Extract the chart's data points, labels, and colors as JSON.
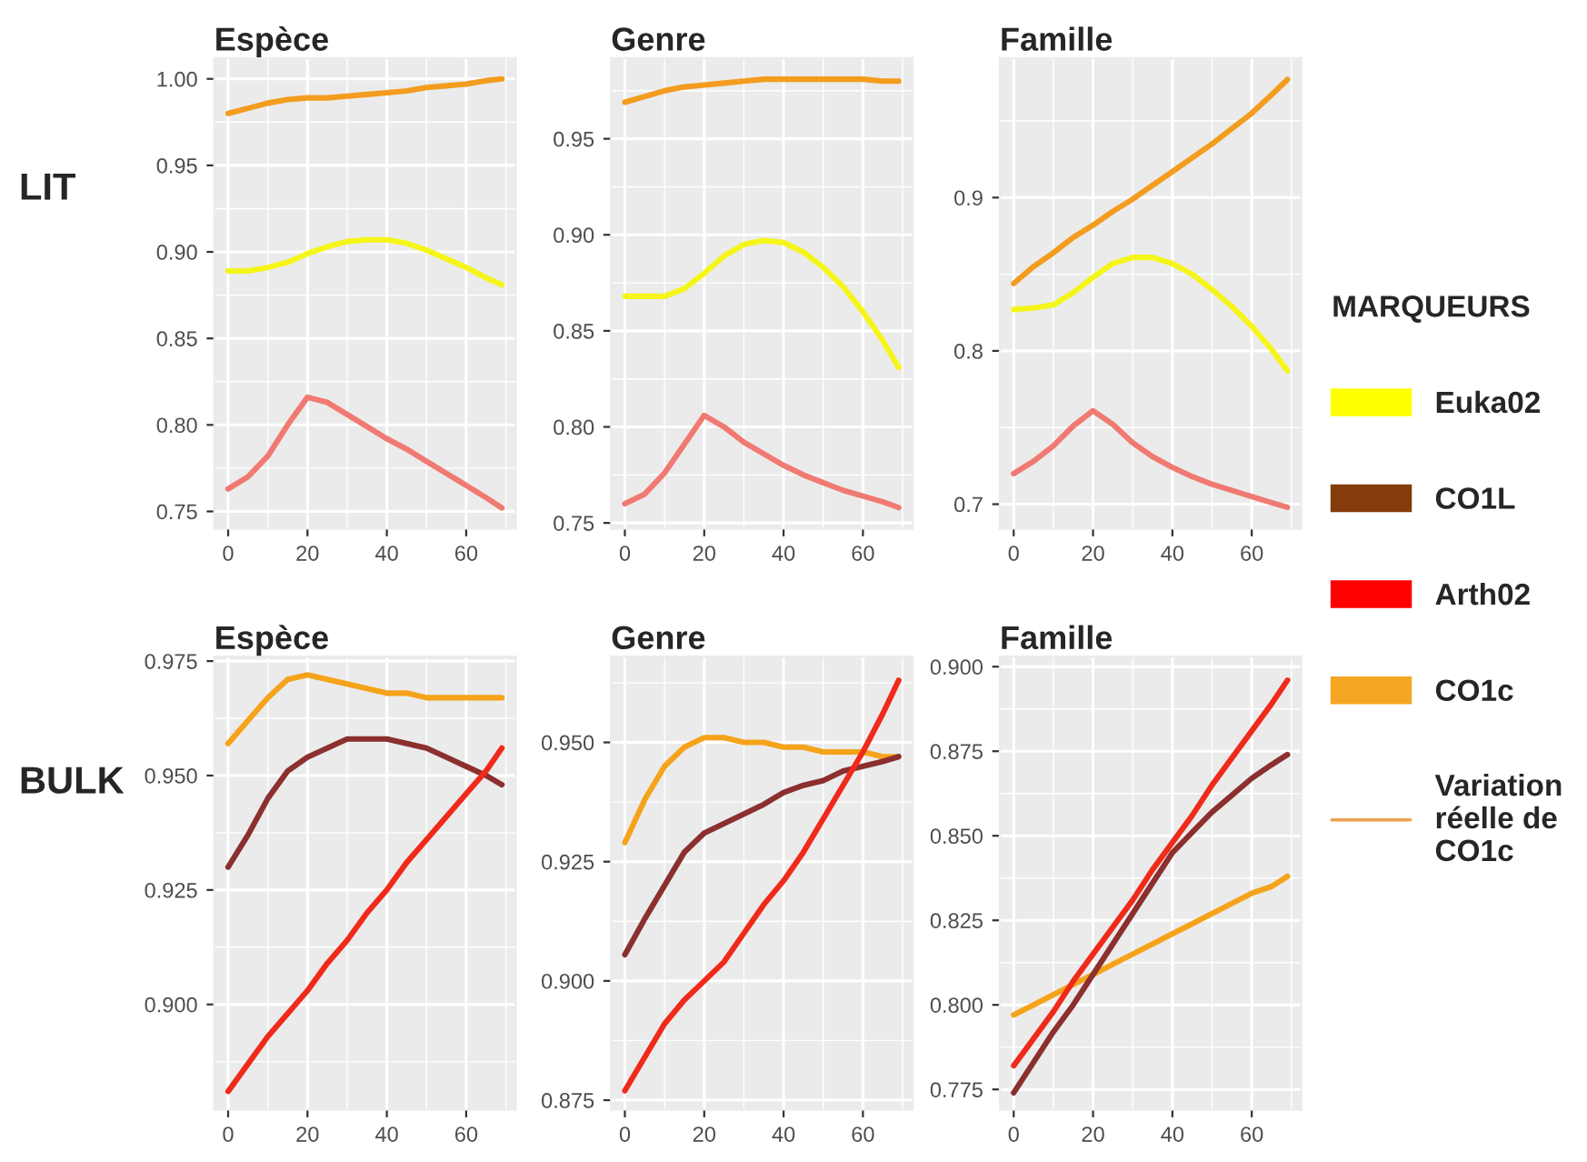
{
  "chart_data": [
    {
      "type": "line",
      "title": "Espèce",
      "x": [
        0,
        5,
        10,
        15,
        20,
        25,
        30,
        35,
        40,
        45,
        50,
        55,
        60,
        65,
        69
      ],
      "xlim": [
        -3.5,
        72.5
      ],
      "xticks": [
        0,
        20,
        40,
        60
      ],
      "ylim": [
        0.74,
        1.012
      ],
      "yticks": [
        0.75,
        {
          "value": 0.8,
          "label": "0.80"
        },
        0.85,
        {
          "value": 0.9,
          "label": "0.90"
        },
        0.95,
        {
          "value": 1.0,
          "label": "1.00"
        }
      ],
      "grid": true,
      "series": [
        {
          "color": "#f39c1e",
          "values": [
            0.98,
            0.983,
            0.986,
            0.988,
            0.989,
            0.989,
            0.99,
            0.991,
            0.992,
            0.993,
            0.995,
            0.996,
            0.997,
            0.999,
            1.0
          ]
        },
        {
          "color": "#f5f51a",
          "values": [
            0.889,
            0.889,
            0.891,
            0.894,
            0.899,
            0.903,
            0.906,
            0.907,
            0.907,
            0.905,
            0.901,
            0.896,
            0.891,
            0.885,
            0.881
          ]
        },
        {
          "color": "#f07a72",
          "values": [
            0.763,
            0.77,
            0.782,
            0.8,
            0.816,
            0.813,
            0.806,
            0.799,
            0.792,
            0.786,
            0.779,
            0.772,
            0.765,
            0.758,
            0.752
          ]
        }
      ]
    },
    {
      "type": "line",
      "title": "Genre",
      "x": [
        0,
        5,
        10,
        15,
        20,
        25,
        30,
        35,
        40,
        45,
        50,
        55,
        60,
        65,
        69
      ],
      "xlim": [
        -3.5,
        72.5
      ],
      "xticks": [
        0,
        20,
        40,
        60
      ],
      "ylim": [
        0.747,
        0.992
      ],
      "yticks": [
        0.75,
        {
          "value": 0.8,
          "label": "0.80"
        },
        0.85,
        {
          "value": 0.9,
          "label": "0.90"
        },
        0.95
      ],
      "grid": true,
      "series": [
        {
          "color": "#f39c1e",
          "values": [
            0.969,
            0.972,
            0.975,
            0.977,
            0.978,
            0.979,
            0.98,
            0.981,
            0.981,
            0.981,
            0.981,
            0.981,
            0.981,
            0.98,
            0.98
          ]
        },
        {
          "color": "#f5f51a",
          "values": [
            0.868,
            0.868,
            0.868,
            0.872,
            0.88,
            0.889,
            0.895,
            0.897,
            0.896,
            0.891,
            0.883,
            0.873,
            0.86,
            0.845,
            0.831
          ]
        },
        {
          "color": "#f07a72",
          "values": [
            0.76,
            0.765,
            0.776,
            0.791,
            0.806,
            0.8,
            0.792,
            0.786,
            0.78,
            0.775,
            0.771,
            0.767,
            0.764,
            0.761,
            0.758
          ]
        }
      ]
    },
    {
      "type": "line",
      "title": "Famille",
      "x": [
        0,
        5,
        10,
        15,
        20,
        25,
        30,
        35,
        40,
        45,
        50,
        55,
        60,
        65,
        69
      ],
      "xlim": [
        -3.5,
        72.5
      ],
      "xticks": [
        0,
        20,
        40,
        60
      ],
      "ylim": [
        0.684,
        0.991
      ],
      "yticks": [
        0.7,
        0.8,
        0.9
      ],
      "grid": true,
      "series": [
        {
          "color": "#f39c1e",
          "values": [
            0.844,
            0.855,
            0.864,
            0.874,
            0.882,
            0.891,
            0.899,
            0.908,
            0.917,
            0.926,
            0.935,
            0.945,
            0.955,
            0.967,
            0.977
          ]
        },
        {
          "color": "#f5f51a",
          "values": [
            0.827,
            0.828,
            0.83,
            0.838,
            0.848,
            0.857,
            0.861,
            0.861,
            0.857,
            0.85,
            0.84,
            0.829,
            0.816,
            0.801,
            0.787
          ]
        },
        {
          "color": "#f07a72",
          "values": [
            0.72,
            0.728,
            0.738,
            0.751,
            0.761,
            0.752,
            0.74,
            0.731,
            0.724,
            0.718,
            0.713,
            0.709,
            0.705,
            0.701,
            0.698
          ]
        }
      ]
    },
    {
      "type": "line",
      "title": "Espèce",
      "x": [
        0,
        5,
        10,
        15,
        20,
        25,
        30,
        35,
        40,
        45,
        50,
        55,
        60,
        65,
        69
      ],
      "xlim": [
        -3.5,
        72.5
      ],
      "xticks": [
        0,
        20,
        40,
        60
      ],
      "ylim": [
        0.877,
        0.976
      ],
      "yticks": [
        {
          "value": 0.9,
          "label": "0.900"
        },
        0.925,
        {
          "value": 0.95,
          "label": "0.950"
        },
        0.975
      ],
      "grid": true,
      "series": [
        {
          "color": "#f5a31a",
          "values": [
            0.957,
            0.962,
            0.967,
            0.971,
            0.972,
            0.971,
            0.97,
            0.969,
            0.968,
            0.968,
            0.967,
            0.967,
            0.967,
            0.967,
            0.967
          ]
        },
        {
          "color": "#8b2f2f",
          "values": [
            0.93,
            0.937,
            0.945,
            0.951,
            0.954,
            0.956,
            0.958,
            0.958,
            0.958,
            0.957,
            0.956,
            0.954,
            0.952,
            0.95,
            0.948
          ]
        },
        {
          "color": "#f02a1a",
          "values": [
            0.881,
            0.887,
            0.893,
            0.898,
            0.903,
            0.909,
            0.914,
            0.92,
            0.925,
            0.931,
            0.936,
            0.941,
            0.946,
            0.951,
            0.956
          ]
        }
      ]
    },
    {
      "type": "line",
      "title": "Genre",
      "x": [
        0,
        5,
        10,
        15,
        20,
        25,
        30,
        35,
        40,
        45,
        50,
        55,
        60,
        65,
        69
      ],
      "xlim": [
        -3.5,
        72.5
      ],
      "xticks": [
        0,
        20,
        40,
        60
      ],
      "ylim": [
        0.873,
        0.968
      ],
      "yticks": [
        0.875,
        {
          "value": 0.9,
          "label": "0.900"
        },
        0.925,
        {
          "value": 0.95,
          "label": "0.950"
        }
      ],
      "grid": true,
      "series": [
        {
          "color": "#f5a31a",
          "values": [
            0.929,
            0.938,
            0.945,
            0.949,
            0.951,
            0.951,
            0.95,
            0.95,
            0.949,
            0.949,
            0.948,
            0.948,
            0.948,
            0.947,
            0.947
          ]
        },
        {
          "color": "#8b2f2f",
          "values": [
            0.9055,
            0.913,
            0.92,
            0.927,
            0.931,
            0.933,
            0.935,
            0.937,
            0.9395,
            0.941,
            0.942,
            0.944,
            0.945,
            0.946,
            0.947
          ]
        },
        {
          "color": "#f02a1a",
          "values": [
            0.877,
            0.884,
            0.891,
            0.896,
            0.9,
            0.904,
            0.91,
            0.916,
            0.921,
            0.927,
            0.934,
            0.941,
            0.948,
            0.956,
            0.963
          ]
        }
      ]
    },
    {
      "type": "line",
      "title": "Famille",
      "x": [
        0,
        5,
        10,
        15,
        20,
        25,
        30,
        35,
        40,
        45,
        50,
        55,
        60,
        65,
        69
      ],
      "xlim": [
        -3.5,
        72.5
      ],
      "xticks": [
        0,
        20,
        40,
        60
      ],
      "ylim": [
        0.769,
        0.903
      ],
      "yticks": [
        0.775,
        {
          "value": 0.8,
          "label": "0.800"
        },
        0.825,
        {
          "value": 0.85,
          "label": "0.850"
        },
        0.875,
        {
          "value": 0.9,
          "label": "0.900"
        }
      ],
      "grid": true,
      "series": [
        {
          "color": "#f5a31a",
          "values": [
            0.797,
            0.8,
            0.803,
            0.806,
            0.809,
            0.812,
            0.815,
            0.818,
            0.821,
            0.824,
            0.827,
            0.83,
            0.833,
            0.835,
            0.838
          ]
        },
        {
          "color": "#8b2f2f",
          "values": [
            0.774,
            0.783,
            0.792,
            0.8,
            0.809,
            0.818,
            0.827,
            0.836,
            0.845,
            0.851,
            0.857,
            0.862,
            0.867,
            0.871,
            0.874
          ]
        },
        {
          "color": "#f02a1a",
          "values": [
            0.782,
            0.79,
            0.798,
            0.807,
            0.815,
            0.823,
            0.831,
            0.84,
            0.848,
            0.856,
            0.865,
            0.873,
            0.881,
            0.889,
            0.896
          ]
        }
      ]
    },
    {
      "type": "other",
      "legend_title": "MARQUEURS",
      "legend": "right",
      "annotations": [
        "LIT",
        "BULK"
      ],
      "series": [
        {
          "name": "Euka02",
          "color": "#ffff00",
          "type": "bar"
        },
        {
          "name": "CO1L",
          "color": "#843c0c",
          "type": "bar"
        },
        {
          "name": "Arth02",
          "color": "#ff0000",
          "type": "bar"
        },
        {
          "name": "CO1c",
          "color": "#f5a623",
          "type": "bar"
        },
        {
          "name": "Variation\nréelle de\nCO1c",
          "color": "#f0a050",
          "type": "line"
        }
      ]
    }
  ]
}
